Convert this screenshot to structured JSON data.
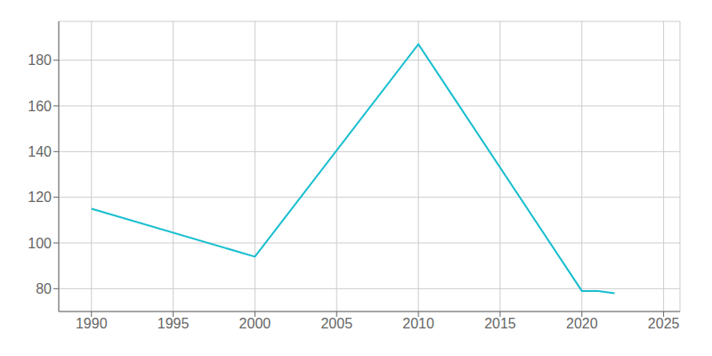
{
  "chart_data": {
    "type": "line",
    "x": [
      1990,
      2000,
      2010,
      2020,
      2021,
      2022
    ],
    "values": [
      115,
      94,
      187,
      79,
      79,
      78
    ],
    "color": "#17becf",
    "xlim": [
      1988,
      2026
    ],
    "ylim": [
      70,
      197
    ],
    "xticks": [
      1990,
      1995,
      2000,
      2005,
      2010,
      2015,
      2020,
      2025
    ],
    "yticks": [
      80,
      100,
      120,
      140,
      160,
      180
    ],
    "grid": true
  }
}
